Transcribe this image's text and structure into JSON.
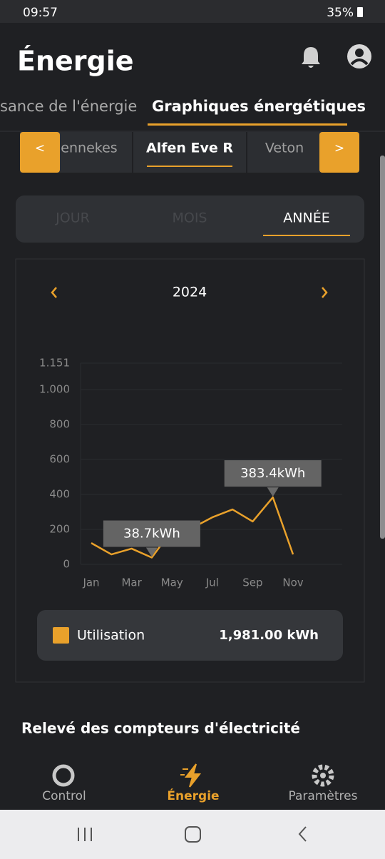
{
  "status_bar": {
    "time": "09:57",
    "battery": "35%"
  },
  "header": {
    "title": "Énergie"
  },
  "tabs": [
    "sance de l'énergie",
    "Graphiques énergétiques"
  ],
  "chargers": {
    "prev": "<",
    "items": [
      "ennekes",
      "Alfen Eve R",
      "Veton"
    ],
    "next": ">"
  },
  "periods": [
    "JOUR",
    "MOIS",
    "ANNÉE"
  ],
  "year": "2024",
  "chart_data": {
    "type": "line",
    "categories": [
      "Jan",
      null,
      "Mar",
      null,
      "May",
      null,
      "Jul",
      null,
      "Sep",
      null,
      "Nov",
      null
    ],
    "series": [
      {
        "name": "Utilisation",
        "color": "#e9a12b",
        "values": [
          122,
          57,
          90,
          38.7,
          195,
          208,
          269,
          314,
          245,
          383.4,
          57,
          null
        ],
        "value_labels": [
          null,
          null,
          null,
          "38.7kWh",
          null,
          null,
          null,
          null,
          null,
          "383.4kWh",
          null,
          null
        ]
      }
    ],
    "ylim": [
      0,
      1151
    ],
    "yticks": [
      0,
      200,
      400,
      600,
      800,
      {
        "value": 1000,
        "label": "1.000"
      },
      {
        "value": 1151,
        "label": "1.151"
      }
    ],
    "grid": true,
    "total": "1,981.00 kWh"
  },
  "section_title": "Relevé des compteurs d'électricité",
  "bottom_nav": [
    "Control",
    "Énergie",
    "Paramètres"
  ]
}
